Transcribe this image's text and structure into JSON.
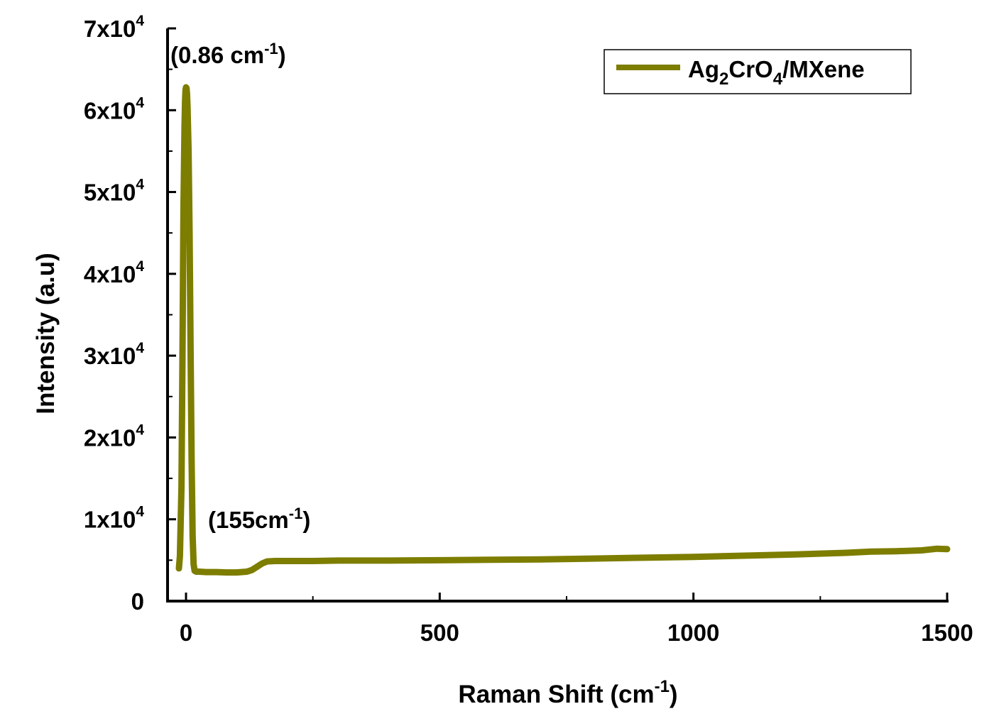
{
  "chart_data": {
    "type": "line",
    "xlabel": "Raman Shift (cm",
    "xlabel_sup": "-1",
    "xlabel_close": ")",
    "ylabel": "Intensity (a.u)",
    "xlim": [
      -25,
      1500
    ],
    "ylim": [
      0,
      70000
    ],
    "x_ticks": [
      0,
      500,
      1000,
      1500
    ],
    "x_tick_labels": [
      "0",
      "500",
      "1000",
      "1500"
    ],
    "x_minor_ticks": [
      250,
      750,
      1250
    ],
    "y_ticks": [
      0,
      10000,
      20000,
      30000,
      40000,
      50000,
      60000,
      70000
    ],
    "y_tick_labels": [
      {
        "base": "0",
        "exp": ""
      },
      {
        "base": "1x10",
        "exp": "4"
      },
      {
        "base": "2x10",
        "exp": "4"
      },
      {
        "base": "3x10",
        "exp": "4"
      },
      {
        "base": "4x10",
        "exp": "4"
      },
      {
        "base": "5x10",
        "exp": "4"
      },
      {
        "base": "6x10",
        "exp": "4"
      },
      {
        "base": "7x10",
        "exp": "4"
      }
    ],
    "legend": {
      "position": "top-right",
      "label_parts": [
        "Ag",
        "2",
        "CrO",
        "4",
        "/MXene"
      ]
    },
    "annotations": [
      {
        "text": "(0.86 cm",
        "sup": "-1",
        "close": ")",
        "x": 0.86,
        "y": 63000
      },
      {
        "text": "(155cm",
        "sup": "-1",
        "close": ")",
        "x": 155,
        "y": 4900
      }
    ],
    "series": [
      {
        "color": "#7d7d00",
        "x": [
          -14,
          -12,
          -9,
          -7,
          -5,
          -3,
          -2,
          -1,
          0,
          1,
          2,
          3,
          5,
          7,
          9,
          11,
          13,
          15,
          17,
          20,
          25,
          40,
          60,
          80,
          100,
          120,
          130,
          140,
          150,
          160,
          175,
          200,
          250,
          300,
          400,
          500,
          600,
          700,
          800,
          900,
          1000,
          1100,
          1200,
          1300,
          1350,
          1400,
          1450,
          1480,
          1500
        ],
        "y": [
          4000,
          5500,
          14000,
          30000,
          48000,
          58000,
          61000,
          62500,
          62800,
          62700,
          62000,
          60500,
          55000,
          45000,
          31000,
          17000,
          8000,
          4500,
          3700,
          3600,
          3600,
          3550,
          3550,
          3500,
          3500,
          3600,
          3800,
          4200,
          4600,
          4850,
          4900,
          4900,
          4900,
          4950,
          4950,
          5000,
          5050,
          5100,
          5200,
          5300,
          5400,
          5550,
          5700,
          5900,
          6050,
          6100,
          6200,
          6400,
          6350
        ]
      }
    ]
  }
}
